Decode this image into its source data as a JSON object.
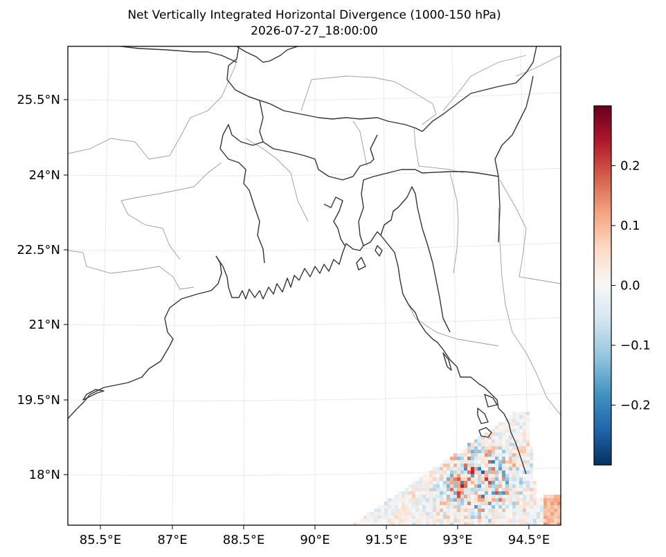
{
  "title": "Net Vertically Integrated Horizontal Divergence (1000-150 hPa)",
  "timestamp": "2026-07-27_18:00:00",
  "map": {
    "lon_ticks": [
      "85.5°E",
      "87°E",
      "88.5°E",
      "90°E",
      "91.5°E",
      "93°E",
      "94.5°E"
    ],
    "lat_ticks": [
      "25.5°N",
      "24°N",
      "22.5°N",
      "21°N",
      "19.5°N",
      "18°N"
    ],
    "extent": {
      "lon": [
        84.8,
        95.1
      ],
      "lat": [
        17.0,
        26.6
      ]
    },
    "features": [
      "coastline",
      "country-borders",
      "state-borders",
      "gridlines"
    ]
  },
  "colorbar": {
    "colormap": "RdBu_r",
    "range": [
      -0.3,
      0.3
    ],
    "ticks": [
      "0.2",
      "0.1",
      "0.0",
      "−0.1",
      "−0.2"
    ],
    "tick_values": [
      0.2,
      0.1,
      0.0,
      -0.1,
      -0.2
    ]
  },
  "colors": {
    "high": "#67001f",
    "mid": "#f7f7f7",
    "low": "#053061",
    "coast": "#333333",
    "state": "#999999"
  }
}
